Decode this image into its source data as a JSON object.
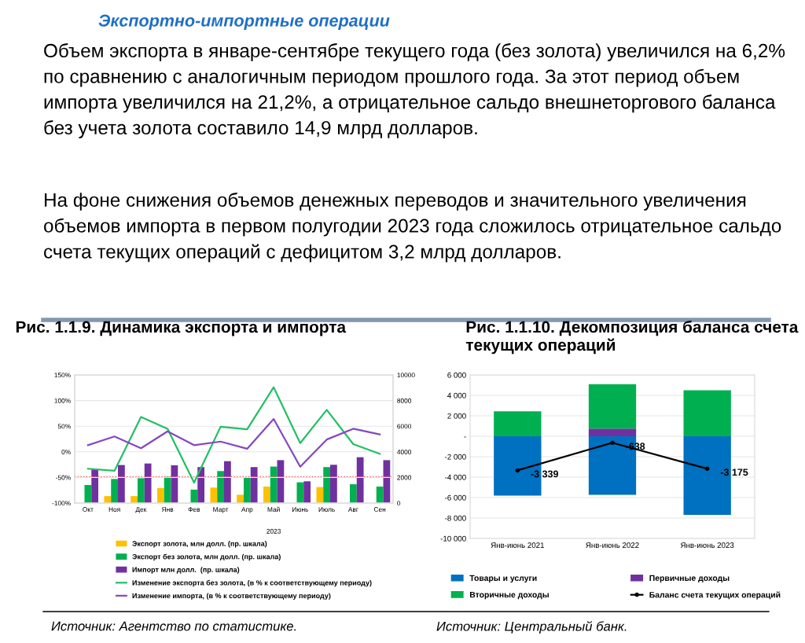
{
  "chart_data": [
    {
      "type": "other",
      "title": "Экспортно-импортные операции",
      "annotations": [
        "Объем экспорта в январе-сентябре текущего года (без золота) увеличился на 6,2% по сравнению с аналогичным периодом прошлого года. За этот период объем импорта увеличился на 21,2%, а отрицательное сальдо внешнеторгового баланса без учета золота составило 14,9 млрд долларов.",
        "На фоне снижения объемов денежных переводов и значительного увеличения объемов импорта в первом полугодии 2023 года сложилось отрицательное сальдо счета текущих операций с дефицитом 3,2 млрд долларов."
      ]
    },
    {
      "type": "bar",
      "title": "Рис. 1.1.9. Динамика экспорта и импорта",
      "categories": [
        "Окт",
        "Ноя",
        "Дек",
        "Янв",
        "Фев",
        "Март",
        "Апр",
        "Май",
        "Июнь",
        "Июль",
        "Авг",
        "Сен"
      ],
      "series": [
        {
          "name": "Экспорт золота, млн долл. (пр. шкала)",
          "color": "#ffc000",
          "axis": "y2",
          "values": [
            null,
            545,
            545,
            1170,
            null,
            1210,
            650,
            1290,
            null,
            1250,
            null,
            null
          ]
        },
        {
          "name": "Экспорт без золота, млн долл. (пр. шкала)",
          "color": "#00b050",
          "axis": "y2",
          "values": [
            1410,
            1880,
            1940,
            2060,
            1050,
            2500,
            1960,
            2850,
            1620,
            2810,
            1470,
            1290
          ]
        },
        {
          "name": "Импорт млн долл.  (пр. шкала)",
          "color": "#7030a0",
          "axis": "y2",
          "values": [
            2630,
            2970,
            3090,
            2950,
            2810,
            3270,
            2810,
            3350,
            1700,
            2990,
            3580,
            3350
          ]
        },
        {
          "type": "line",
          "name": "Изменение экспорта без золота, (в % к соответствующему периоду)",
          "color": "#22bf65",
          "values": [
            -33,
            -37,
            68,
            45,
            -60,
            49,
            44,
            126,
            17,
            82,
            15,
            -4
          ]
        },
        {
          "type": "line",
          "name": "Изменение импорта, (в % к соответствующему периоду)",
          "color": "#8448c0",
          "values": [
            13,
            30,
            7,
            40,
            13,
            20,
            6,
            64,
            -29,
            24,
            45,
            34
          ]
        }
      ],
      "ylim": [
        -100,
        150
      ],
      "yticks": [
        {
          "value": -100,
          "label": "-100%"
        },
        {
          "value": -50,
          "label": "-50%"
        },
        {
          "value": 0,
          "label": "0%"
        },
        {
          "value": 50,
          "label": "50%"
        },
        {
          "value": 100,
          "label": "100%"
        },
        {
          "value": 150,
          "label": "150%"
        }
      ],
      "y2lim": [
        0,
        10000
      ],
      "y2ticks": [
        0,
        2000,
        4000,
        6000,
        8000,
        10000
      ],
      "ref_lines": [
        {
          "axis": "y2",
          "value": 2060,
          "color": "#ff3030",
          "line_style": "dotted"
        }
      ],
      "annotations": [
        "2023",
        "Источник: Агентство по статистике."
      ],
      "grid": "y",
      "legend": "bottom",
      "marker": "none"
    },
    {
      "type": "bar",
      "stacked": true,
      "title": "Рис. 1.1.10. Декомпозиция баланса счета текущих операций",
      "categories": [
        "Янв-июнь 2021",
        "Янв-июнь 2022",
        "Янв-июнь 2023"
      ],
      "series": [
        {
          "name": "Товары и услуги",
          "color": "#0070c0",
          "values": [
            -5810,
            -5740,
            -7700
          ]
        },
        {
          "name": "Первичные доходы",
          "color": "#7030a0",
          "values": [
            null,
            750,
            null
          ]
        },
        {
          "name": "Вторичные доходы",
          "color": "#00b050",
          "values": [
            2450,
            4340,
            4500
          ]
        },
        {
          "type": "line",
          "name": "Баланс счета текущих операций",
          "color": "#000000",
          "marker": "circle",
          "values": [
            -3339,
            -638,
            -3175
          ],
          "value_labels": [
            "-3 339",
            "-638",
            "-3 175"
          ]
        }
      ],
      "ylim": [
        -10000,
        6000
      ],
      "yticks": [
        {
          "value": -10000,
          "label": "-10 000"
        },
        {
          "value": -8000,
          "label": "-8 000"
        },
        {
          "value": -6000,
          "label": "-6 000"
        },
        {
          "value": -4000,
          "label": "-4 000"
        },
        {
          "value": -2000,
          "label": "-2 000"
        },
        {
          "value": 0,
          "label": "-"
        },
        {
          "value": 2000,
          "label": "2 000"
        },
        {
          "value": 4000,
          "label": "4 000"
        },
        {
          "value": 6000,
          "label": "6 000"
        }
      ],
      "annotations": [
        "Источник: Центральный банк."
      ],
      "grid": "y",
      "legend": "bottom"
    }
  ]
}
